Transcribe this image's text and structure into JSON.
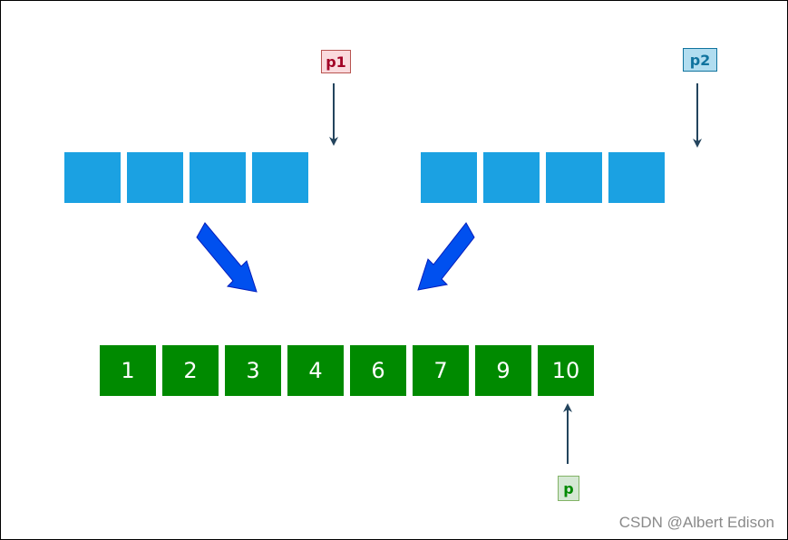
{
  "pointers": {
    "p1": "p1",
    "p2": "p2",
    "p": "p"
  },
  "arrays": {
    "left_count": 4,
    "right_count": 4,
    "merged": [
      "1",
      "2",
      "3",
      "4",
      "6",
      "7",
      "9",
      "10"
    ]
  },
  "watermark": "CSDN @Albert Edison",
  "colors": {
    "source_cell": "#1ba1e2",
    "merged_cell": "#008a00",
    "merge_arrow": "#0050ef",
    "pointer_arrow": "#23445d"
  }
}
